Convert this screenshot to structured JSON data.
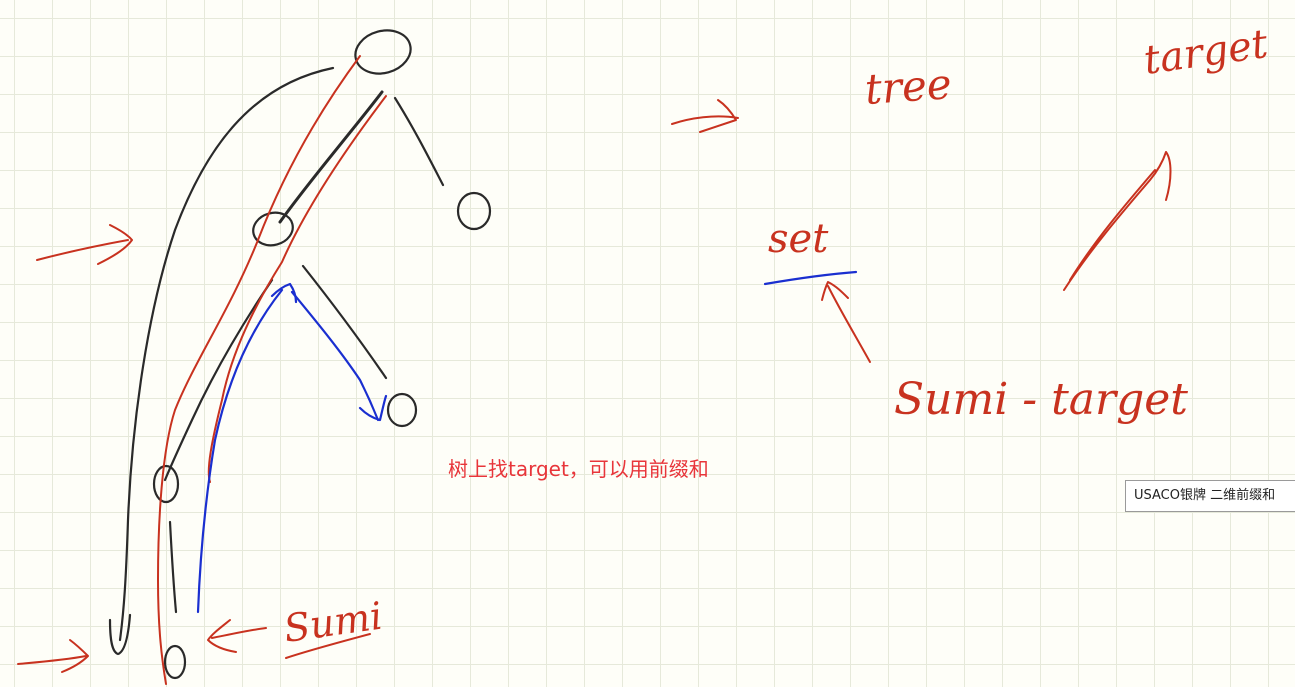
{
  "colors": {
    "ink_black": "#2a2a2a",
    "ink_red": "#c8321f",
    "ink_blue": "#1a2fd0",
    "note_red": "#e8353a",
    "grid_line": "#e6e9da",
    "background": "#fefef8"
  },
  "handwriting": {
    "tree": "tree",
    "target_top": "target",
    "set": "set",
    "sum_minus_target": "Sumi - target",
    "sum_bottom": "Sumi"
  },
  "note": {
    "text": "树上找target，可以用前缀和"
  },
  "tooltip": {
    "text": "USACO银牌 二维前缀和"
  }
}
